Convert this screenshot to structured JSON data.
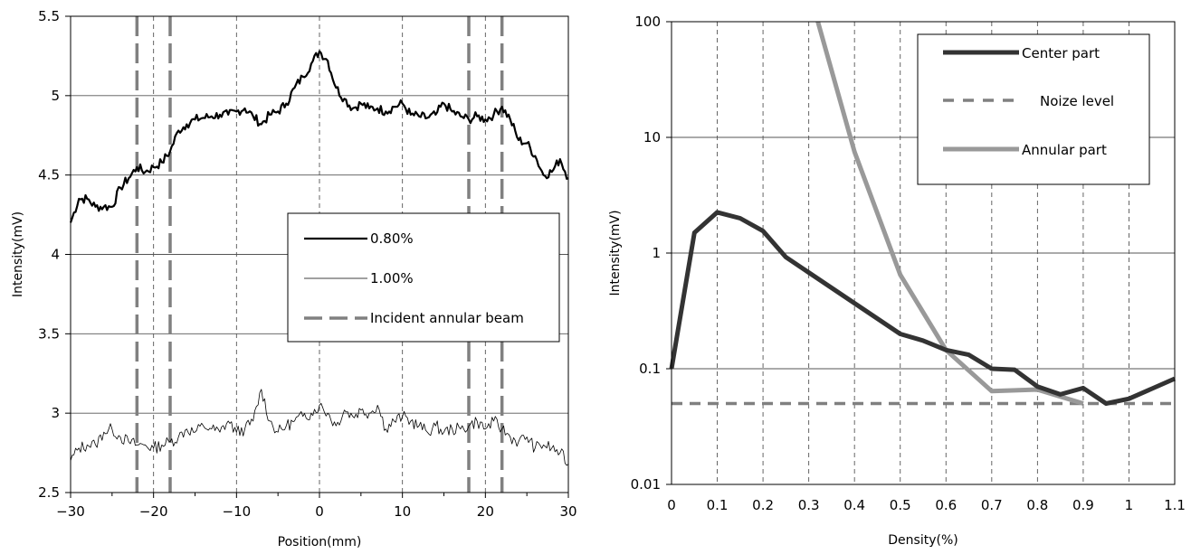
{
  "chart_data": [
    {
      "type": "line",
      "title": "",
      "xlabel": "Position(mm)",
      "ylabel": "Intensity(mV)",
      "xlim": [
        -30,
        30
      ],
      "ylim": [
        2.5,
        5.5
      ],
      "x_ticks": [
        -30,
        -20,
        -10,
        0,
        10,
        20,
        30
      ],
      "x_tick_labels": [
        "−30",
        "−20",
        "−10",
        "0",
        "10",
        "20",
        "30"
      ],
      "y_ticks": [
        2.5,
        3,
        3.5,
        4,
        4.5,
        5,
        5.5
      ],
      "y_tick_labels": [
        "2.5",
        "3",
        "3.5",
        "4",
        "4.5",
        "5",
        "5.5"
      ],
      "grid": "horizontal solid at y ticks, vertical dashed at x ticks",
      "legend_position": "center-right",
      "series": [
        {
          "name": "0.80%",
          "color": "#000000",
          "style": "thick solid, noisy",
          "x": [
            -30,
            -29,
            -28,
            -27,
            -26,
            -25,
            -24,
            -23,
            -22,
            -21,
            -20,
            -19,
            -18,
            -17,
            -16,
            -15,
            -14,
            -13,
            -12,
            -11,
            -10,
            -9,
            -8,
            -7,
            -6,
            -5,
            -4,
            -3,
            -2,
            -1,
            0,
            1,
            2,
            3,
            4,
            5,
            6,
            7,
            8,
            9,
            10,
            11,
            12,
            13,
            14,
            15,
            16,
            17,
            18,
            19,
            20,
            21,
            22,
            23,
            24,
            25,
            26,
            27,
            28,
            29,
            30
          ],
          "values": [
            4.2,
            4.35,
            4.35,
            4.3,
            4.3,
            4.3,
            4.42,
            4.48,
            4.55,
            4.52,
            4.55,
            4.58,
            4.65,
            4.78,
            4.82,
            4.85,
            4.86,
            4.87,
            4.88,
            4.88,
            4.9,
            4.92,
            4.87,
            4.82,
            4.88,
            4.9,
            4.95,
            5.05,
            5.12,
            5.2,
            5.28,
            5.22,
            5.05,
            4.98,
            4.92,
            4.95,
            4.92,
            4.92,
            4.9,
            4.93,
            4.95,
            4.88,
            4.87,
            4.86,
            4.88,
            4.95,
            4.9,
            4.87,
            4.85,
            4.87,
            4.85,
            4.88,
            4.93,
            4.85,
            4.72,
            4.7,
            4.62,
            4.5,
            4.52,
            4.6,
            4.48
          ]
        },
        {
          "name": "1.00%",
          "color": "#000000",
          "style": "thin solid, noisy",
          "x": [
            -30,
            -29,
            -28,
            -27,
            -26,
            -25,
            -24,
            -23,
            -22,
            -21,
            -20,
            -19,
            -18,
            -17,
            -16,
            -15,
            -14,
            -13,
            -12,
            -11,
            -10,
            -9,
            -8,
            -7,
            -6,
            -5,
            -4,
            -3,
            -2,
            -1,
            0,
            1,
            2,
            3,
            4,
            5,
            6,
            7,
            8,
            9,
            10,
            11,
            12,
            13,
            14,
            15,
            16,
            17,
            18,
            19,
            20,
            21,
            22,
            23,
            24,
            25,
            26,
            27,
            28,
            29,
            30
          ],
          "values": [
            2.7,
            2.78,
            2.8,
            2.8,
            2.88,
            2.9,
            2.85,
            2.82,
            2.8,
            2.8,
            2.78,
            2.8,
            2.82,
            2.85,
            2.9,
            2.88,
            2.92,
            2.9,
            2.88,
            2.95,
            2.88,
            2.9,
            2.95,
            3.15,
            2.95,
            2.88,
            2.92,
            2.95,
            2.98,
            3.0,
            3.05,
            3.0,
            2.92,
            3.02,
            2.98,
            3.02,
            3.0,
            3.05,
            2.9,
            2.95,
            2.98,
            2.95,
            2.92,
            2.88,
            2.92,
            2.88,
            2.9,
            2.9,
            2.92,
            2.95,
            2.9,
            2.95,
            2.9,
            2.85,
            2.82,
            2.85,
            2.78,
            2.8,
            2.78,
            2.75,
            2.68
          ]
        }
      ],
      "vertical_markers": {
        "name": "Incident annular beam",
        "color": "#808080",
        "style": "thick dashed",
        "x": [
          -22,
          -18,
          18,
          22
        ]
      }
    },
    {
      "type": "line",
      "title": "",
      "xlabel": "Density(%)",
      "ylabel": "Intensity(mV)",
      "xlim": [
        0,
        1.1
      ],
      "ylim": [
        0.01,
        100
      ],
      "y_scale": "log",
      "x_ticks": [
        0,
        0.1,
        0.2,
        0.3,
        0.4,
        0.5,
        0.6,
        0.7,
        0.8,
        0.9,
        1,
        1.1
      ],
      "x_tick_labels": [
        "0",
        "0.1",
        "0.2",
        "0.3",
        "0.4",
        "0.5",
        "0.6",
        "0.7",
        "0.8",
        "0.9",
        "1",
        "1.1"
      ],
      "y_ticks": [
        0.01,
        0.1,
        1,
        10,
        100
      ],
      "y_tick_labels": [
        "0.01",
        "0.1",
        "1",
        "10",
        "100"
      ],
      "grid": "horizontal solid at decades, vertical dashed at x ticks",
      "legend_position": "top-right",
      "series": [
        {
          "name": "Center part",
          "color": "#333333",
          "style": "thick solid",
          "x": [
            0,
            0.05,
            0.1,
            0.15,
            0.2,
            0.25,
            0.5,
            0.55,
            0.6,
            0.65,
            0.7,
            0.75,
            0.8,
            0.85,
            0.9,
            0.95,
            1.0,
            1.1
          ],
          "values": [
            0.1,
            1.5,
            2.25,
            2.0,
            1.55,
            0.92,
            0.2,
            0.175,
            0.145,
            0.132,
            0.1,
            0.098,
            0.07,
            0.06,
            0.068,
            0.05,
            0.055,
            0.082
          ]
        },
        {
          "name": "Noize level",
          "color": "#808080",
          "style": "thick dashed",
          "x": [
            0,
            1.1
          ],
          "values": [
            0.05,
            0.05
          ]
        },
        {
          "name": "Annular part",
          "color": "#999999",
          "style": "thick solid",
          "x": [
            0.32,
            0.4,
            0.5,
            0.6,
            0.7,
            0.8,
            0.9
          ],
          "values": [
            100,
            7.5,
            0.65,
            0.145,
            0.064,
            0.066,
            0.05
          ]
        }
      ]
    }
  ]
}
